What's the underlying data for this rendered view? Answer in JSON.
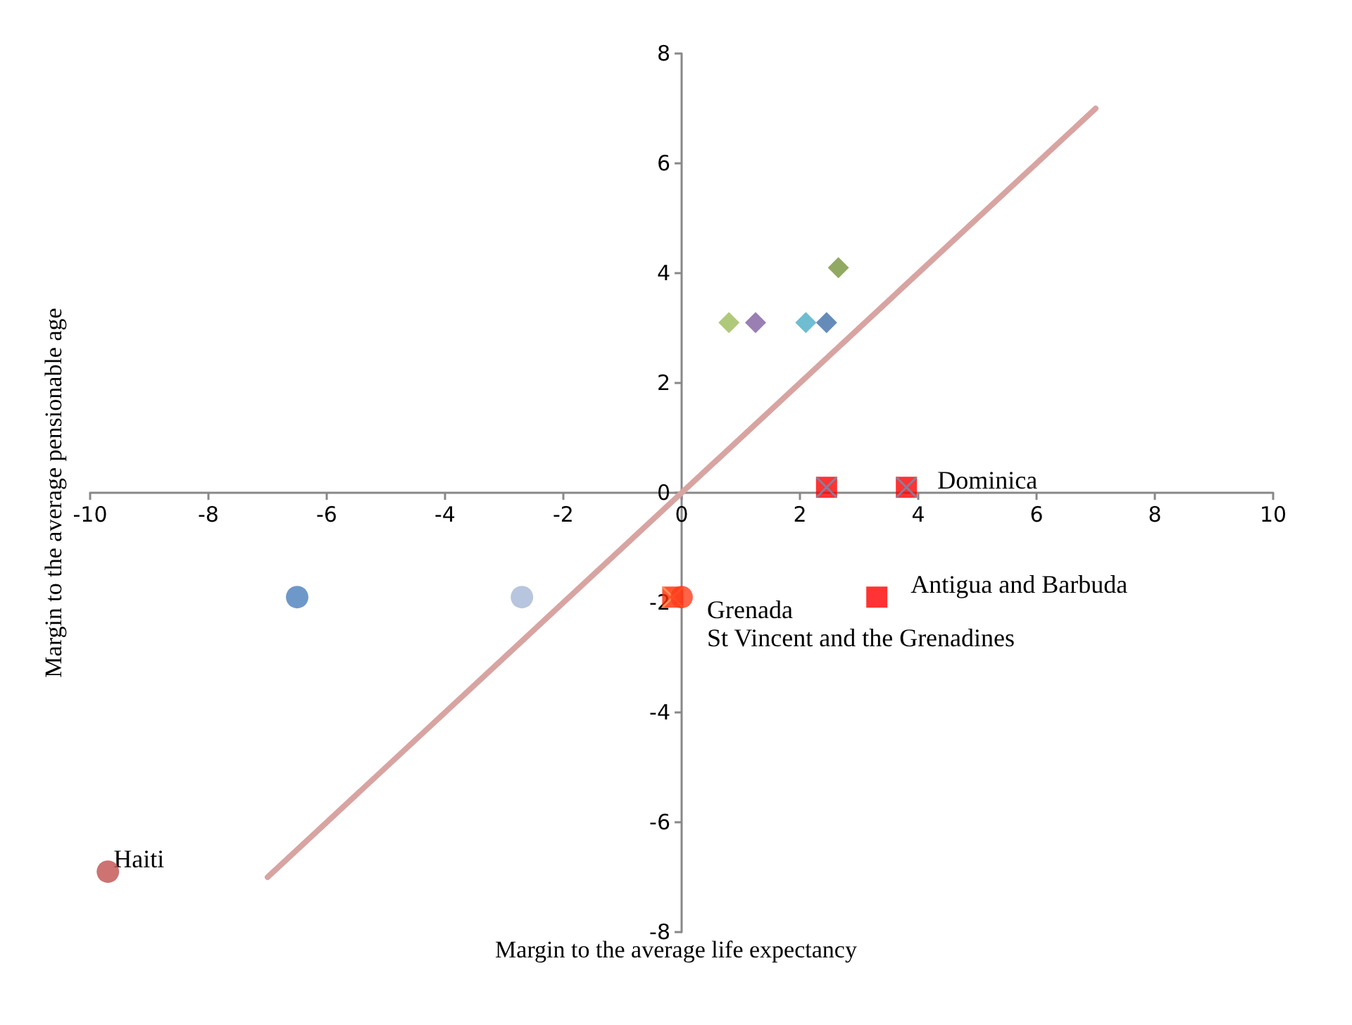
{
  "chart_data": {
    "type": "scatter",
    "xlabel": "Margin to the average life expectancy",
    "ylabel": "Margin to the average pensionable age",
    "xlim": [
      -10,
      10
    ],
    "xticks": [
      -10,
      -8,
      -6,
      -4,
      -2,
      0,
      2,
      4,
      6,
      8,
      10
    ],
    "ylim": [
      -8,
      8
    ],
    "yticks": [
      -8,
      -6,
      -4,
      -2,
      0,
      2,
      4,
      6,
      8
    ],
    "grid": false,
    "series": [
      {
        "x": [
          -9.7
        ],
        "values": [
          -6.9
        ],
        "color": "#c0504d",
        "marker": "circle"
      },
      {
        "x": [
          -6.5
        ],
        "values": [
          -1.9
        ],
        "color": "#4a7ebb",
        "marker": "circle"
      },
      {
        "x": [
          -2.7
        ],
        "values": [
          -1.9
        ],
        "color": "#a5b6d6",
        "marker": "circle"
      },
      {
        "x": [
          -0.15
        ],
        "values": [
          -1.9
        ],
        "color": "#ff2a00",
        "marker": "square"
      },
      {
        "x": [
          -0.15
        ],
        "values": [
          -1.9
        ],
        "color": "#ffa060",
        "marker": "cross"
      },
      {
        "x": [
          0
        ],
        "values": [
          -1.9
        ],
        "color": "#ff3c1a",
        "marker": "circle"
      },
      {
        "x": [
          3.3
        ],
        "values": [
          -1.9
        ],
        "color": "#ff0000",
        "marker": "square"
      },
      {
        "x": [
          2.45,
          3.8
        ],
        "values": [
          0.1,
          0.1
        ],
        "color": "#ff0000",
        "marker": "square"
      },
      {
        "x": [
          2.45,
          3.8
        ],
        "values": [
          0.1,
          0.1
        ],
        "color": "#6f8fb8",
        "marker": "cross"
      },
      {
        "x": [
          0.8
        ],
        "values": [
          3.1
        ],
        "color": "#9bbb59",
        "marker": "diamond"
      },
      {
        "x": [
          1.25
        ],
        "values": [
          3.1
        ],
        "color": "#7f5f9f",
        "marker": "diamond"
      },
      {
        "x": [
          2.1
        ],
        "values": [
          3.1
        ],
        "color": "#4bacc6",
        "marker": "diamond"
      },
      {
        "x": [
          2.45
        ],
        "values": [
          3.1
        ],
        "color": "#3f6fa8",
        "marker": "diamond"
      },
      {
        "x": [
          2.65
        ],
        "values": [
          4.1
        ],
        "color": "#77933c",
        "marker": "diamond"
      },
      {
        "type": "line",
        "x": [
          -7,
          7
        ],
        "values": [
          -7,
          7
        ],
        "color": "#d8a4a2",
        "marker": "none",
        "line_style": "solid"
      }
    ],
    "annotations": [
      {
        "text": "Haiti",
        "x": -9.7,
        "y": -6.9
      },
      {
        "text": "Grenada",
        "x": 0,
        "y": -1.9
      },
      {
        "text": "St Vincent and the Grenadines",
        "x": 0,
        "y": -1.9
      },
      {
        "text": "Antigua and Barbuda",
        "x": 3.3,
        "y": -1.9
      },
      {
        "text": "Dominica",
        "x": 3.8,
        "y": 0.1
      }
    ]
  }
}
